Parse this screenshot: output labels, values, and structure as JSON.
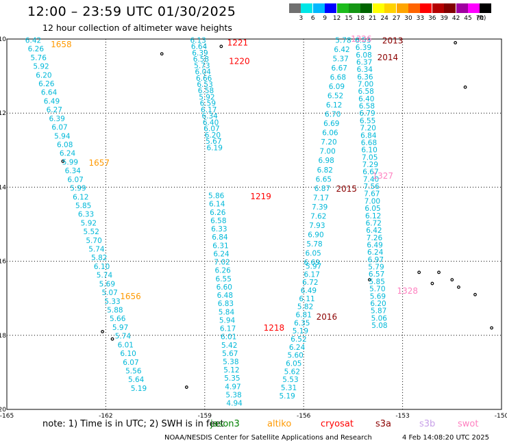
{
  "header": {
    "title": "12:00 – 23:59 UTC 01/30/2025",
    "subtitle": "12 hour collection of altimeter wave heights"
  },
  "legend": {
    "labels": [
      "3",
      "6",
      "9",
      "12",
      "15",
      "18",
      "21",
      "24",
      "27",
      "30",
      "33",
      "36",
      "39",
      "42",
      "45",
      "70"
    ],
    "unit": "(ft)",
    "colors": [
      "#707070",
      "#00e6e6",
      "#00b8ff",
      "#0000ff",
      "#1cbc1c",
      "#149614",
      "#006400",
      "#ffff00",
      "#ffd200",
      "#ffa500",
      "#ff6400",
      "#ff0000",
      "#b40000",
      "#800000",
      "#a000a0",
      "#ff00ff",
      "#000000"
    ]
  },
  "footer": {
    "note": "note: 1) Time is in UTC; 2) SWH is in feet",
    "satellites": [
      {
        "name": "jason3",
        "color": "#008000"
      },
      {
        "name": "altiko",
        "color": "#ff9900"
      },
      {
        "name": "cryosat",
        "color": "#ff0000"
      },
      {
        "name": "s3a",
        "color": "#8b0000"
      },
      {
        "name": "s3b",
        "color": "#c8a0e8"
      },
      {
        "name": "swot",
        "color": "#ff80c0"
      }
    ],
    "credit": "NOAA/NESDIS Center for Satellite Applications and Research",
    "timestamp": "4 Feb 14:08:20 UTC 2025"
  },
  "chart_data": {
    "type": "scatter",
    "title": "12:00 – 23:59 UTC 01/30/2025",
    "subtitle": "12 hour collection of altimeter wave heights",
    "xlim": [
      -165,
      -150
    ],
    "ylim": [
      -20,
      -10
    ],
    "x_ticks": [
      "-165",
      "-162",
      "-159",
      "-156",
      "-153",
      "-150"
    ],
    "y_ticks": [
      "-10",
      "-12",
      "-14",
      "-16",
      "-18",
      "-20"
    ],
    "grid": true,
    "value_color": "#00b8d8",
    "tracks": [
      {
        "satellite": "altiko",
        "color": "#ff9900",
        "time_labels": [
          {
            "text": "1658",
            "lon": -163.35,
            "lat": -10.15
          },
          {
            "text": "1657",
            "lon": -162.2,
            "lat": -13.35
          },
          {
            "text": "1656",
            "lon": -161.25,
            "lat": -16.95
          }
        ],
        "start": [
          -164.2,
          -10.1
        ],
        "end": [
          -161.0,
          -19.5
        ],
        "values": [
          "6.42",
          "6.26",
          "5.76",
          "5.92",
          "6.20",
          "6.26",
          "6.64",
          "6.49",
          "6.27",
          "6.39",
          "6.07",
          "5.94",
          "6.08",
          "6.24",
          "5.99",
          "6.34",
          "6.07",
          "5.99",
          "6.12",
          "5.85",
          "6.33",
          "5.92",
          "5.52",
          "5.70",
          "5.74",
          "5.82",
          "6.10",
          "5.74",
          "5.69",
          "5.07",
          "5.33",
          "5.88",
          "5.66",
          "5.97",
          "5.74",
          "6.01",
          "6.10",
          "6.07",
          "5.56",
          "5.64",
          "5.19"
        ]
      },
      {
        "satellite": "cryosat",
        "color": "#ff0000",
        "time_labels": [
          {
            "text": "1221",
            "lon": -158.0,
            "lat": -10.1
          },
          {
            "text": "1220",
            "lon": -157.95,
            "lat": -10.6
          }
        ],
        "start": [
          -159.2,
          -10.1
        ],
        "end": [
          -158.7,
          -13.0
        ],
        "values": [
          "6.13",
          "6.64",
          "6.39",
          "6.58",
          "5.73",
          "6.04",
          "6.66",
          "6.53",
          "6.58",
          "5.92",
          "6.59",
          "6.17",
          "6.34",
          "6.40",
          "6.07",
          "6.20",
          "5.67",
          "6.19"
        ]
      },
      {
        "satellite": "cryosat",
        "color": "#ff0000",
        "time_labels": [
          {
            "text": "1219",
            "lon": -157.3,
            "lat": -14.25
          },
          {
            "text": "1218",
            "lon": -156.9,
            "lat": -17.8
          }
        ],
        "start": [
          -158.65,
          -14.3
        ],
        "end": [
          -158.1,
          -19.9
        ],
        "values": [
          "5.86",
          "6.14",
          "6.26",
          "6.58",
          "6.33",
          "6.84",
          "6.31",
          "6.24",
          "7.02",
          "6.26",
          "6.55",
          "6.60",
          "6.48",
          "6.83",
          "5.84",
          "5.94",
          "6.17",
          "6.01",
          "5.42",
          "5.67",
          "5.38",
          "5.12",
          "5.35",
          "4.97",
          "5.38",
          "4.94"
        ]
      },
      {
        "satellite": "s3a",
        "color": "#8b0000",
        "time_labels": [
          {
            "text": "2016",
            "lon": -155.3,
            "lat": -17.5
          }
        ],
        "start": [
          -155.7,
          -16.2
        ],
        "end": [
          -156.5,
          -19.7
        ],
        "values": [
          "5.97",
          "6.17",
          "6.72",
          "6.49",
          "6.11",
          "5.82",
          "6.81",
          "6.35",
          "5.19",
          "6.52",
          "6.24",
          "5.60",
          "6.05",
          "5.62",
          "5.53",
          "5.31",
          "5.19"
        ]
      },
      {
        "satellite": "s3a",
        "color": "#8b0000",
        "time_labels": [
          {
            "text": "2015",
            "lon": -154.7,
            "lat": -14.05
          }
        ],
        "start": [
          -154.8,
          -10.1
        ],
        "end": [
          -155.75,
          -16.1
        ],
        "values": [
          "5.78",
          "6.42",
          "5.37",
          "6.67",
          "6.68",
          "6.09",
          "6.52",
          "6.12",
          "6.70",
          "6.69",
          "6.06",
          "7.20",
          "7.00",
          "6.98",
          "6.82",
          "6.65",
          "6.87",
          "7.17",
          "7.39",
          "7.62",
          "7.93",
          "6.90",
          "5.78",
          "6.05",
          "6.69"
        ]
      },
      {
        "satellite": "s3a",
        "color": "#8b0000",
        "time_labels": [
          {
            "text": "2013",
            "lon": -153.3,
            "lat": -10.05
          },
          {
            "text": "2014",
            "lon": -153.45,
            "lat": -10.5
          }
        ],
        "start": [
          -154.2,
          -10.1
        ],
        "end": [
          -153.7,
          -17.8
        ],
        "values": [
          "6.53",
          "6.39",
          "6.08",
          "6.37",
          "6.34",
          "6.36",
          "7.00",
          "6.58",
          "6.40",
          "6.58",
          "6.79",
          "6.55",
          "7.20",
          "6.84",
          "6.68",
          "6.10",
          "7.05",
          "7.29",
          "6.67",
          "7.40",
          "7.56",
          "7.67",
          "7.00",
          "6.05",
          "6.12",
          "6.72",
          "6.42",
          "7.26",
          "6.49",
          "6.24",
          "6.97",
          "5.79",
          "6.57",
          "5.85",
          "5.70",
          "5.69",
          "6.20",
          "5.87",
          "5.06",
          "5.08"
        ]
      },
      {
        "satellite": "swot",
        "color": "#ff80c0",
        "time_labels": [
          {
            "text": "1326",
            "lon": -154.25,
            "lat": -10.0
          },
          {
            "text": "1327",
            "lon": -153.6,
            "lat": -13.7
          },
          {
            "text": "1328",
            "lon": -152.85,
            "lat": -16.8
          }
        ],
        "start": [
          -154.5,
          -10.0
        ],
        "end": [
          -153.0,
          -17.0
        ],
        "values": []
      }
    ]
  }
}
